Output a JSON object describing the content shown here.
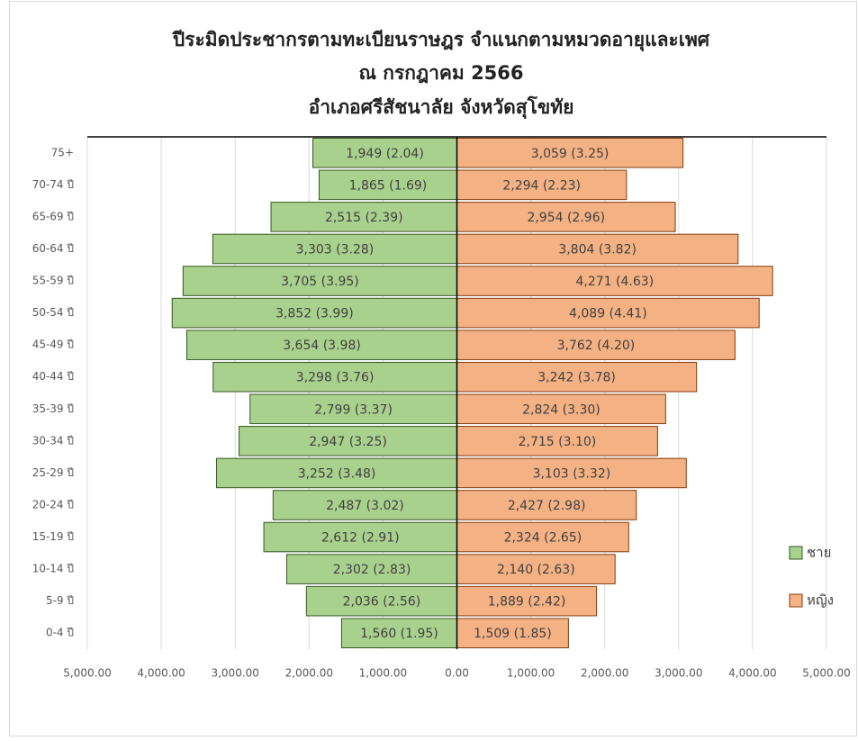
{
  "chart_data": {
    "type": "pyramid",
    "title": "ปีระมิดประชากรตามทะเบียนราษฎร จำแนกตามหมวดอายุและเพศ",
    "subtitle": "ณ กรกฎาคม 2566",
    "subtitle2": "อำเภอศรีสัชนาลัย จังหวัดสุโขทัย",
    "categories": [
      "75+",
      "70-74 ปี",
      "65-69 ปี",
      "60-64 ปี",
      "55-59 ปี",
      "50-54 ปี",
      "45-49 ปี",
      "40-44 ปี",
      "35-39 ปี",
      "30-34 ปี",
      "25-29 ปี",
      "20-24 ปี",
      "15-19 ปี",
      "10-14 ปี",
      "5-9 ปี",
      "0-4 ปี"
    ],
    "series": [
      {
        "name": "ชาย",
        "color": "#a9d18e",
        "edge": "#385723",
        "values": [
          1949,
          1865,
          2515,
          3303,
          3705,
          3852,
          3654,
          3298,
          2799,
          2947,
          3252,
          2487,
          2612,
          2302,
          2036,
          1560
        ],
        "value_labels": [
          "1,949 (2.04)",
          "1,865 (1.69)",
          "2,515 (2.39)",
          "3,303 (3.28)",
          "3,705 (3.95)",
          "3,852 (3.99)",
          "3,654 (3.98)",
          "3,298 (3.76)",
          "2,799 (3.37)",
          "2,947 (3.25)",
          "3,252 (3.48)",
          "2,487 (3.02)",
          "2,612 (2.91)",
          "2,302 (2.83)",
          "2,036 (2.56)",
          "1,560 (1.95)"
        ]
      },
      {
        "name": "หญิง",
        "color": "#f4b183",
        "edge": "#843c0c",
        "values": [
          3059,
          2294,
          2954,
          3804,
          4271,
          4089,
          3762,
          3242,
          2824,
          2715,
          3103,
          2427,
          2324,
          2140,
          1889,
          1509
        ],
        "value_labels": [
          "3,059 (3.25)",
          "2,294 (2.23)",
          "2,954 (2.96)",
          "3,804 (3.82)",
          "4,271 (4.63)",
          "4,089 (4.41)",
          "3,762 (4.20)",
          "3,242 (3.78)",
          "2,824 (3.30)",
          "2,715 (3.10)",
          "3,103 (3.32)",
          "2,427 (2.98)",
          "2,324 (2.65)",
          "2,140 (2.63)",
          "1,889 (2.42)",
          "1,509 (1.85)"
        ]
      }
    ],
    "xlim": [
      -5000,
      5000
    ],
    "xticks": [
      {
        "value": -5000,
        "label": "5,000.00"
      },
      {
        "value": -4000,
        "label": "4,000.00"
      },
      {
        "value": -3000,
        "label": "3,000.00"
      },
      {
        "value": -2000,
        "label": "2,000.00"
      },
      {
        "value": -1000,
        "label": "1,000.00"
      },
      {
        "value": 0,
        "label": "0.00"
      },
      {
        "value": 1000,
        "label": "1,000.00"
      },
      {
        "value": 2000,
        "label": "2,000.00"
      },
      {
        "value": 3000,
        "label": "3,000.00"
      },
      {
        "value": 4000,
        "label": "4,000.00"
      },
      {
        "value": 5000,
        "label": "5,000.00"
      }
    ],
    "grid": true,
    "legend": "right"
  }
}
